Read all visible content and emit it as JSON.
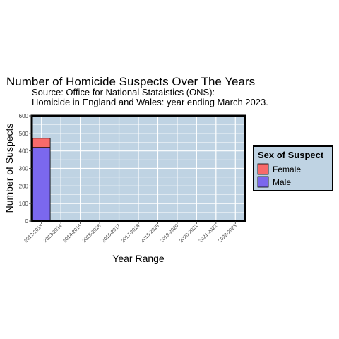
{
  "chart_data": {
    "type": "bar",
    "stacked": true,
    "title": "Number of Homicide Suspects Over The Years",
    "subtitle": [
      "Source: Office for National Stataistics (ONS):",
      "Homicide in England and Wales: year ending March 2023."
    ],
    "xlabel": "Year Range",
    "ylabel": "Number of Suspects",
    "categories": [
      "2012-2013",
      "2013-2014",
      "2014-2015",
      "2015-2016",
      "2016-2017",
      "2017-2018",
      "2018-2019",
      "2019-2020",
      "2020-2021",
      "2021-2022",
      "2022-2023"
    ],
    "series": [
      {
        "name": "Male",
        "color": "#7b68ee",
        "values": [
          420,
          null,
          null,
          null,
          null,
          null,
          null,
          null,
          null,
          null,
          null
        ]
      },
      {
        "name": "Female",
        "color": "#f86a6a",
        "values": [
          52,
          null,
          null,
          null,
          null,
          null,
          null,
          null,
          null,
          null,
          null
        ]
      }
    ],
    "ylim": [
      0,
      600
    ],
    "yticks": [
      0,
      100,
      200,
      300,
      400,
      500,
      600
    ],
    "grid": true,
    "panel_color": "#bfd3e3",
    "legend": {
      "title": "Sex of Suspect",
      "placement": "right",
      "entries": [
        {
          "label": "Female",
          "color": "#f86a6a"
        },
        {
          "label": "Male",
          "color": "#7b68ee"
        }
      ]
    }
  }
}
